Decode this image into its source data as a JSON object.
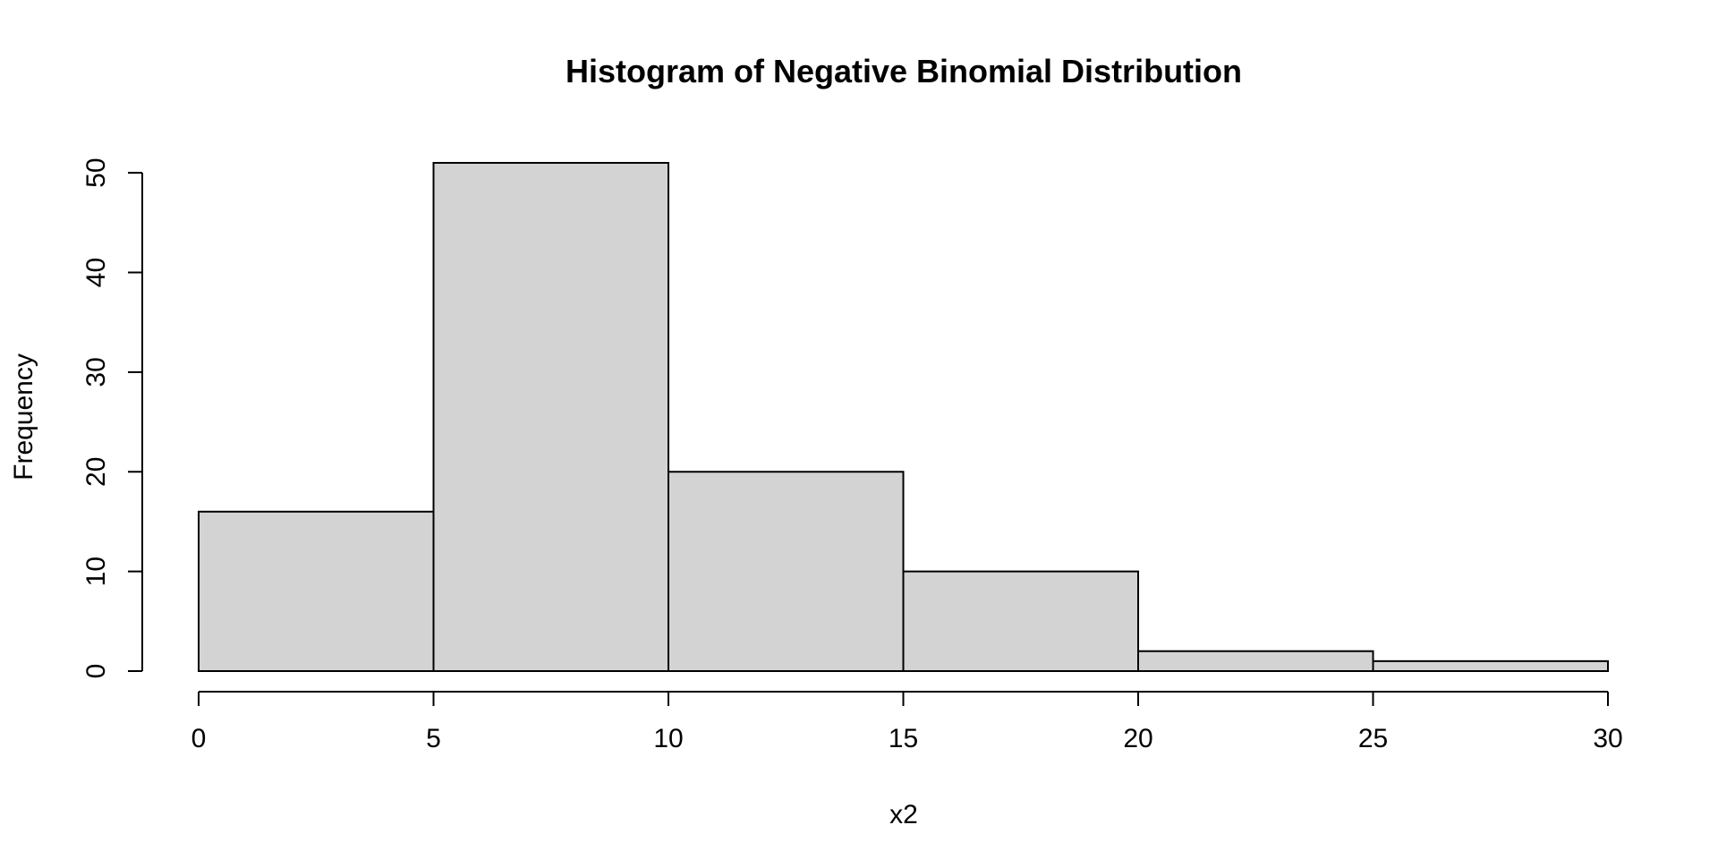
{
  "chart_data": {
    "type": "bar",
    "subtype": "histogram",
    "title": "Histogram of Negative Binomial Distribution",
    "xlabel": "x2",
    "ylabel": "Frequency",
    "bins": [
      {
        "from": 0,
        "to": 5,
        "count": 16
      },
      {
        "from": 5,
        "to": 10,
        "count": 51
      },
      {
        "from": 10,
        "to": 15,
        "count": 20
      },
      {
        "from": 15,
        "to": 20,
        "count": 10
      },
      {
        "from": 20,
        "to": 25,
        "count": 2
      },
      {
        "from": 25,
        "to": 30,
        "count": 1
      }
    ],
    "xticks": [
      "0",
      "5",
      "10",
      "15",
      "20",
      "25",
      "30"
    ],
    "yticks": [
      "0",
      "10",
      "20",
      "30",
      "40",
      "50"
    ],
    "xlim": [
      0,
      30
    ],
    "ylim": [
      0,
      51
    ],
    "grid": false,
    "legend": "none",
    "colors": {
      "bar_fill": "#d3d3d3",
      "bar_stroke": "#000000"
    }
  }
}
